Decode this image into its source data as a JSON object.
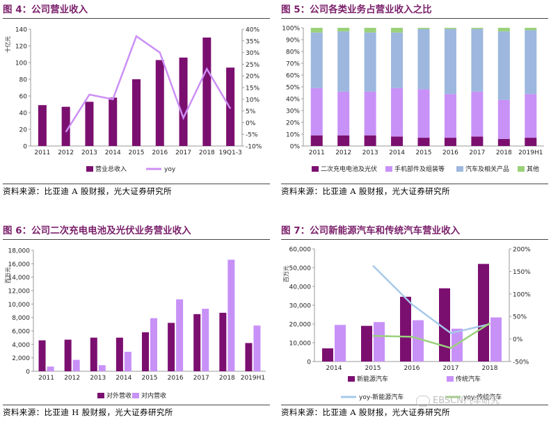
{
  "panels": [
    {
      "title": "图 4：公司营业收入",
      "source": "资料来源：比亚迪 A 股财报，光大证券研究所"
    },
    {
      "title": "图 5：公司各类业务占营业收入之比",
      "source": "资料来源：比亚迪 A 股财报，光大证券研究所"
    },
    {
      "title": "图 6：公司二次充电电池及光伏业务营业收入",
      "source": "资料来源：比亚迪 H 股财报，光大证券研究所"
    },
    {
      "title": "图 7：公司新能源汽车和传统汽车营业收入",
      "source": "资料来源：比亚迪 A 股财报，光大证券研究所"
    }
  ],
  "watermark": "EBSCN汽车研究",
  "colors": {
    "purple": "#7b0f70",
    "lilac": "#cc8ff5",
    "light_lilac": "#c891f7",
    "steel_blue": "#9db7de",
    "green": "#9ad17a",
    "sky": "#a6c8ea",
    "title": "#7a1f6a"
  },
  "chart_data": [
    {
      "type": "bar",
      "unit": "十亿元",
      "categories": [
        "2011",
        "2012",
        "2013",
        "2014",
        "2015",
        "2016",
        "2017",
        "2018",
        "19Q1-3"
      ],
      "series": [
        {
          "name": "营业总收入",
          "type": "bar",
          "axis": "left",
          "values": [
            49,
            47,
            53,
            58,
            80,
            103,
            106,
            130,
            94
          ]
        },
        {
          "name": "yoy",
          "type": "line",
          "axis": "right",
          "values": [
            null,
            -4,
            12,
            10,
            37,
            30,
            2,
            23,
            6
          ]
        }
      ],
      "ylim": [
        0,
        140
      ],
      "yticks": [
        0,
        20,
        40,
        60,
        80,
        100,
        120,
        140
      ],
      "y2lim": [
        -10,
        40
      ],
      "y2ticks": [
        "-10%",
        "-5%",
        "0%",
        "5%",
        "10%",
        "15%",
        "20%",
        "25%",
        "30%",
        "35%",
        "40%"
      ],
      "legend": [
        "营业总收入",
        "yoy"
      ]
    },
    {
      "type": "bar",
      "stacked": true,
      "categories": [
        "2011",
        "2012",
        "2013",
        "2014",
        "2015",
        "2016",
        "2017",
        "2018",
        "2019H1"
      ],
      "series": [
        {
          "name": "二次充电电池及光伏",
          "values": [
            9,
            9,
            9,
            8,
            7,
            7,
            8,
            6,
            7
          ]
        },
        {
          "name": "手机部件及组装等",
          "values": [
            40,
            37,
            37,
            41,
            41,
            37,
            38,
            33,
            37
          ]
        },
        {
          "name": "汽车及相关产品",
          "values": [
            47,
            51,
            50,
            47,
            51,
            55,
            53,
            58,
            54
          ]
        },
        {
          "name": "其他",
          "values": [
            4,
            3,
            4,
            4,
            1,
            1,
            1,
            3,
            2
          ]
        }
      ],
      "ylim": [
        0,
        100
      ],
      "yticks": [
        "0%",
        "10%",
        "20%",
        "30%",
        "40%",
        "50%",
        "60%",
        "70%",
        "80%",
        "90%",
        "100%"
      ],
      "legend": [
        "二次充电电池及光伏",
        "手机部件及组装等",
        "汽车及相关产品",
        "其他"
      ]
    },
    {
      "type": "bar",
      "unit": "百万元",
      "categories": [
        "2011",
        "2012",
        "2013",
        "2014",
        "2015",
        "2016",
        "2017",
        "2018",
        "2019H1"
      ],
      "series": [
        {
          "name": "对外营收",
          "values": [
            4600,
            4700,
            5000,
            5000,
            5800,
            7200,
            8500,
            8700,
            4200
          ]
        },
        {
          "name": "对内营收",
          "values": [
            700,
            1700,
            900,
            2900,
            7900,
            10700,
            9300,
            16600,
            6800
          ]
        }
      ],
      "ylim": [
        0,
        18000
      ],
      "yticks": [
        "0",
        "2,000",
        "4,000",
        "6,000",
        "8,000",
        "10,000",
        "12,000",
        "14,000",
        "16,000",
        "18,000"
      ],
      "legend": [
        "对外营收",
        "对内营收"
      ]
    },
    {
      "type": "bar",
      "unit": "百万元",
      "categories": [
        "2014",
        "2015",
        "2016",
        "2017",
        "2018"
      ],
      "series": [
        {
          "name": "新能源汽车",
          "type": "bar",
          "axis": "left",
          "values": [
            7000,
            19000,
            34500,
            39000,
            52000
          ]
        },
        {
          "name": "传统汽车",
          "type": "bar",
          "axis": "left",
          "values": [
            19500,
            21000,
            22000,
            17500,
            23500
          ]
        },
        {
          "name": "yoy-新能源汽车",
          "type": "line",
          "axis": "right",
          "values": [
            null,
            163,
            77,
            13,
            33
          ]
        },
        {
          "name": "yoy-传统汽车",
          "type": "line",
          "axis": "right",
          "values": [
            null,
            7,
            5,
            -20,
            35
          ]
        }
      ],
      "ylim": [
        0,
        60000
      ],
      "yticks": [
        "0",
        "10,000",
        "20,000",
        "30,000",
        "40,000",
        "50,000",
        "60,000"
      ],
      "y2lim": [
        -50,
        200
      ],
      "y2ticks": [
        "-50%",
        "0%",
        "50%",
        "100%",
        "150%",
        "200%"
      ],
      "legend": [
        "新能源汽车",
        "传统汽车",
        "yoy-新能源汽车",
        "yoy-传统汽车"
      ]
    }
  ]
}
